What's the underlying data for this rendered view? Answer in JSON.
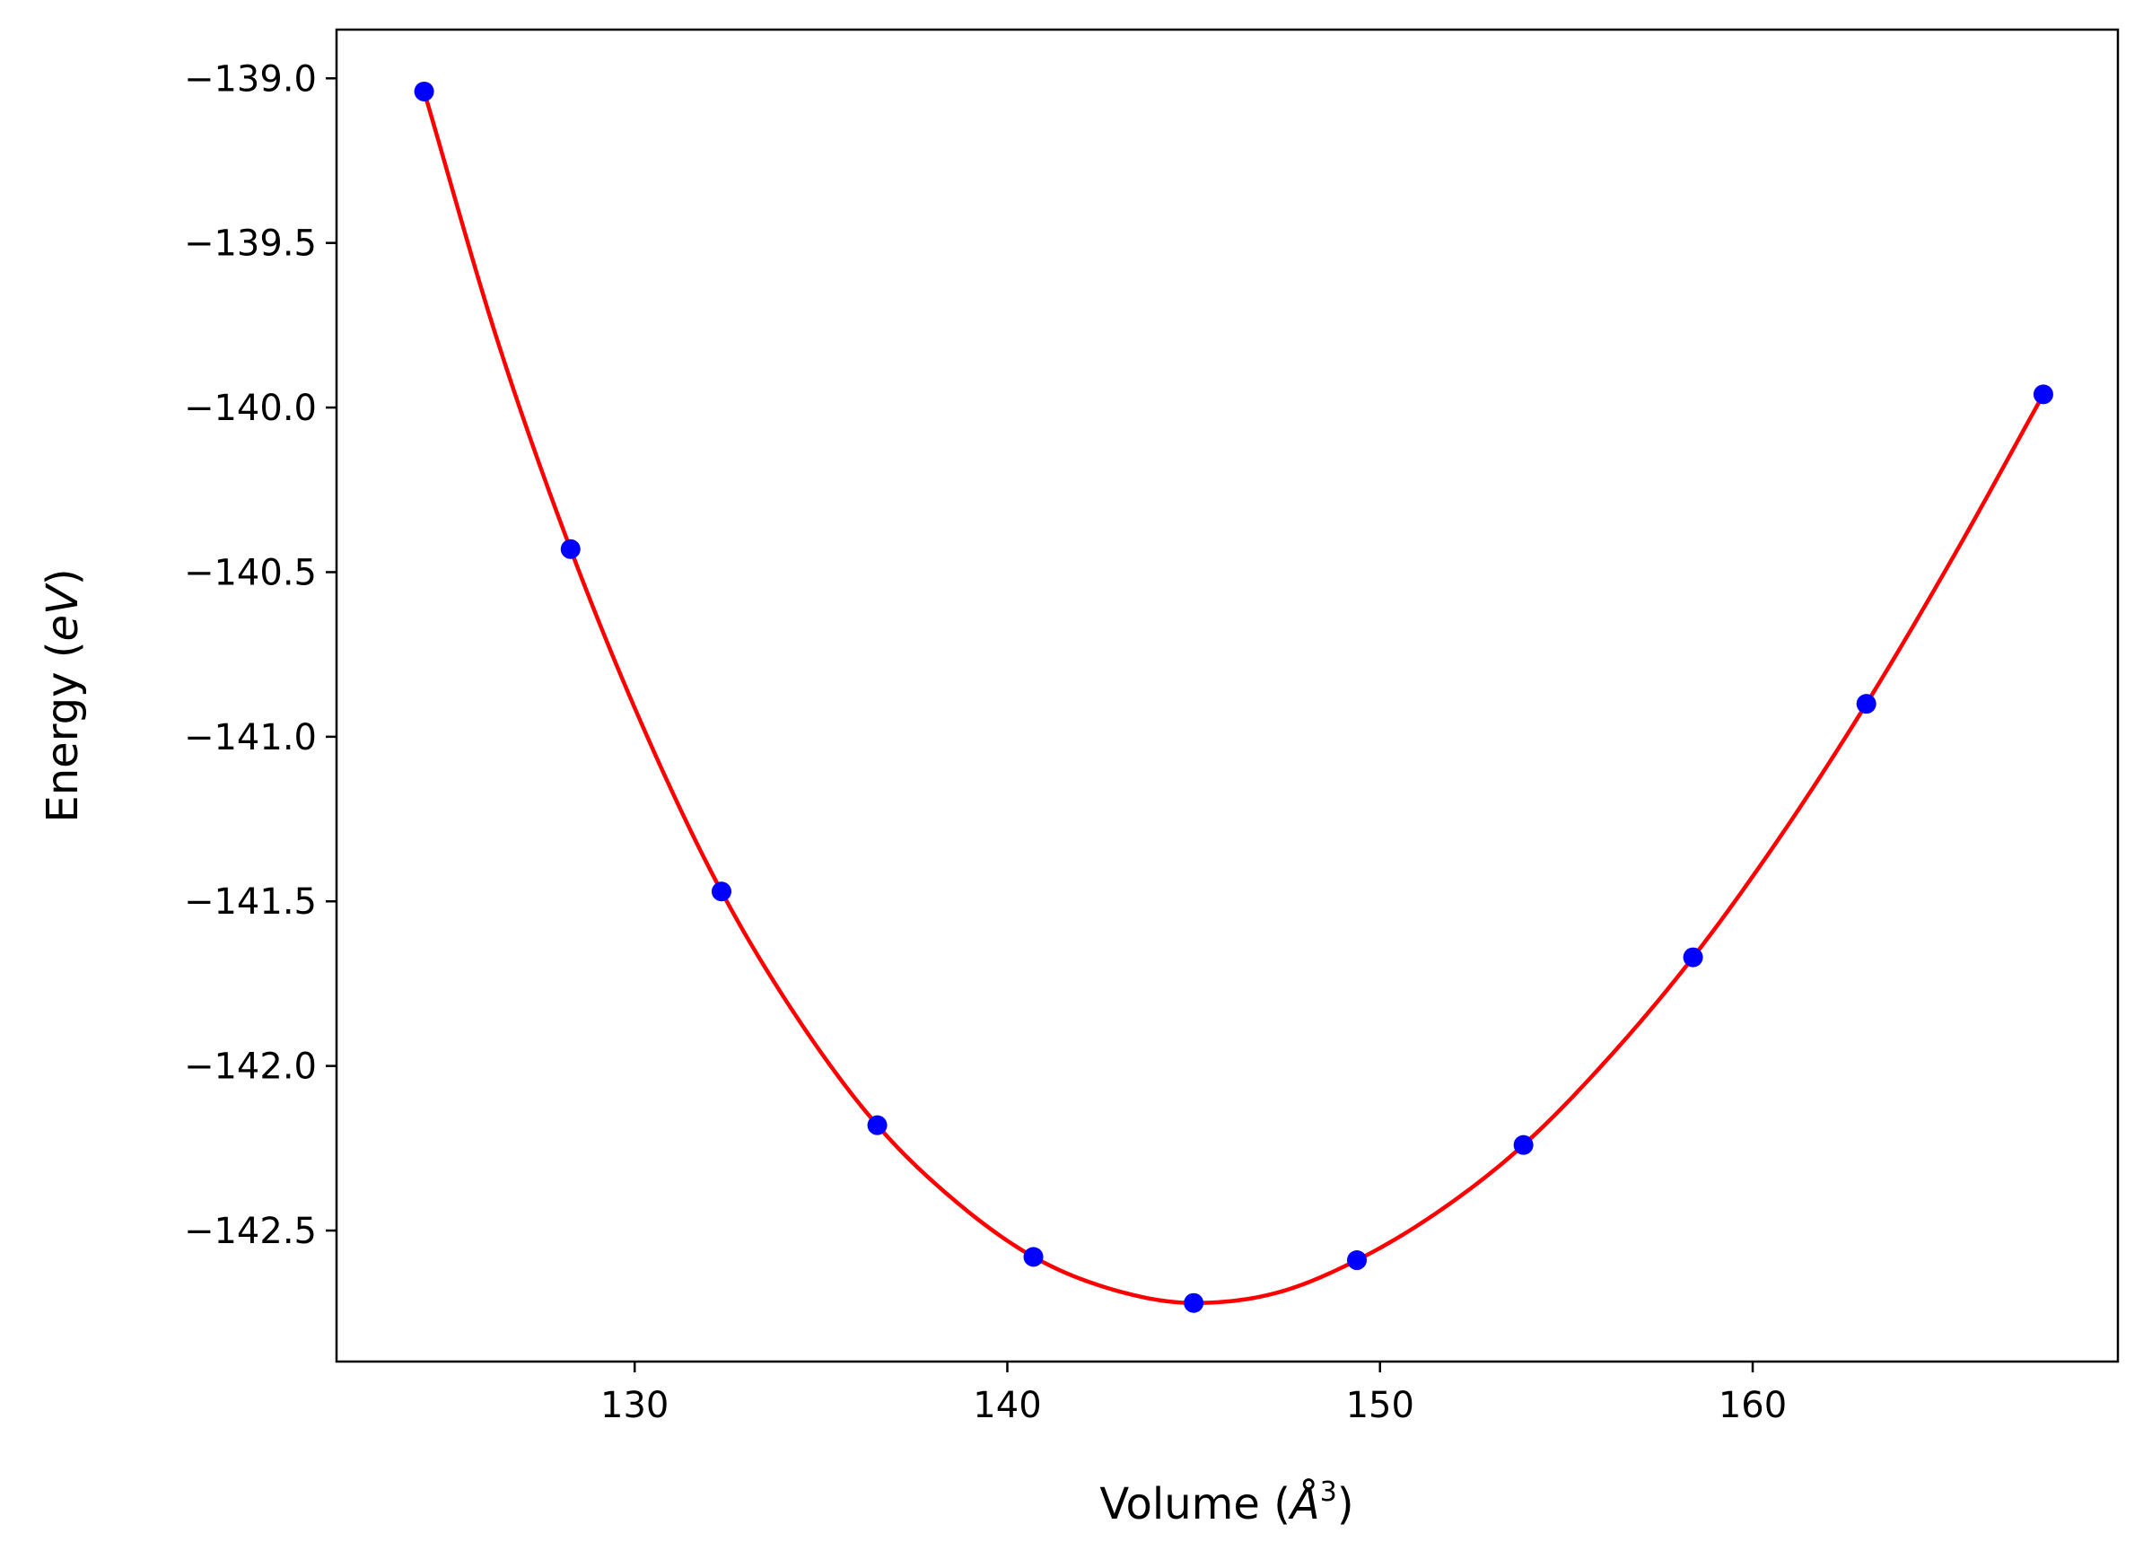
{
  "chart_data": {
    "type": "scatter",
    "title": "",
    "xlabel": {
      "prefix": "Volume (",
      "symbol": "Å",
      "superscript": "3",
      "suffix": ")"
    },
    "ylabel": {
      "prefix": "Energy (",
      "italic": "eV",
      "suffix": ")"
    },
    "xlim": [
      122.0,
      169.8
    ],
    "ylim": [
      -142.898,
      -138.852
    ],
    "x_ticks": [
      {
        "value": 130,
        "label": "130"
      },
      {
        "value": 140,
        "label": "140"
      },
      {
        "value": 150,
        "label": "150"
      },
      {
        "value": 160,
        "label": "160"
      }
    ],
    "y_ticks": [
      {
        "value": -139.0,
        "label": "−139.0"
      },
      {
        "value": -139.5,
        "label": "−139.5"
      },
      {
        "value": -140.0,
        "label": "−140.0"
      },
      {
        "value": -140.5,
        "label": "−140.5"
      },
      {
        "value": -141.0,
        "label": "−141.0"
      },
      {
        "value": -141.5,
        "label": "−141.5"
      },
      {
        "value": -142.0,
        "label": "−142.0"
      },
      {
        "value": -142.5,
        "label": "−142.5"
      }
    ],
    "series": [
      {
        "kind": "points",
        "color": "#0000ff",
        "x": [
          124.35,
          128.28,
          132.33,
          136.51,
          140.7,
          145.0,
          149.38,
          153.85,
          158.4,
          163.05,
          167.8
        ],
        "y": [
          -139.04,
          -140.43,
          -141.47,
          -142.18,
          -142.58,
          -142.72,
          -142.59,
          -142.24,
          -141.67,
          -140.9,
          -139.96
        ]
      },
      {
        "kind": "fit-curve",
        "color": "#ff0000",
        "x": [
          124.35,
          126.3,
          128.28,
          130.3,
          132.33,
          134.4,
          136.51,
          138.6,
          140.7,
          142.85,
          145.0,
          147.2,
          149.38,
          151.6,
          153.85,
          156.1,
          158.4,
          160.7,
          163.05,
          165.4,
          167.8
        ],
        "y": [
          -139.04,
          -139.79,
          -140.43,
          -140.99,
          -141.47,
          -141.86,
          -142.18,
          -142.41,
          -142.58,
          -142.68,
          -142.72,
          -142.69,
          -142.59,
          -142.44,
          -142.24,
          -141.98,
          -141.67,
          -141.31,
          -140.9,
          -140.45,
          -139.96
        ]
      }
    ],
    "grid": false,
    "legend": "none"
  }
}
